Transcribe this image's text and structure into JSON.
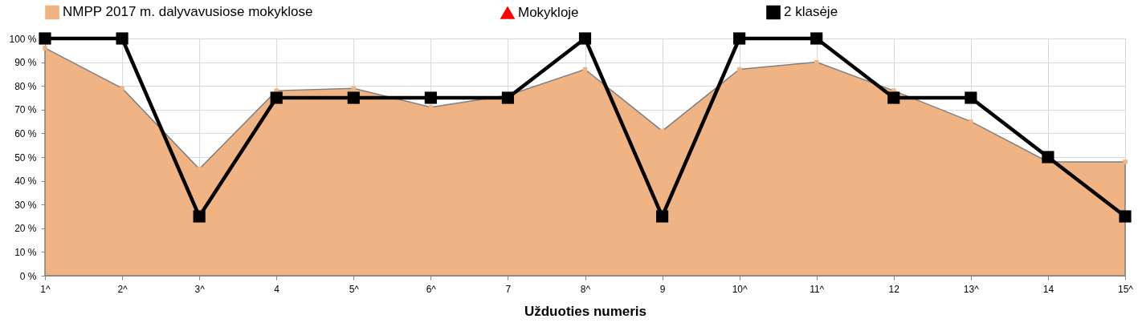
{
  "chart_data": {
    "type": "line",
    "xlabel": "Užduoties numeris",
    "categories": [
      "1^",
      "2^",
      "3^",
      "4",
      "5^",
      "6^",
      "7",
      "8^",
      "9",
      "10^",
      "11^",
      "12",
      "13^",
      "14",
      "15^"
    ],
    "series": [
      {
        "name": "NMPP 2017 m. dalyvavusiose mokyklose",
        "type": "area",
        "color": "#f0b383",
        "values": [
          96,
          79,
          45,
          78,
          79,
          71,
          76,
          87,
          61,
          87,
          90,
          78,
          65,
          48,
          48
        ]
      },
      {
        "name": "Mokykloje",
        "color": "#ff0000",
        "marker": "triangle",
        "values": [
          null,
          null,
          null,
          null,
          null,
          null,
          null,
          null,
          null,
          null,
          null,
          null,
          null,
          null,
          null
        ]
      },
      {
        "name": "2 klasėje",
        "color": "#000000",
        "marker": "square",
        "values": [
          100,
          100,
          25,
          75,
          75,
          75,
          75,
          100,
          25,
          100,
          100,
          75,
          75,
          50,
          25
        ]
      }
    ],
    "ylim": [
      0,
      100
    ],
    "yticks": [
      {
        "value": 0,
        "label": "0 %"
      },
      {
        "value": 10,
        "label": "10 %"
      },
      {
        "value": 20,
        "label": "20 %"
      },
      {
        "value": 30,
        "label": "30 %"
      },
      {
        "value": 40,
        "label": "40 %"
      },
      {
        "value": 50,
        "label": "50 %"
      },
      {
        "value": 60,
        "label": "60 %"
      },
      {
        "value": 70,
        "label": "70 %"
      },
      {
        "value": 80,
        "label": "80 %"
      },
      {
        "value": 90,
        "label": "90 %"
      },
      {
        "value": 100,
        "label": "100 %"
      }
    ],
    "grid": true,
    "legend": "top"
  }
}
